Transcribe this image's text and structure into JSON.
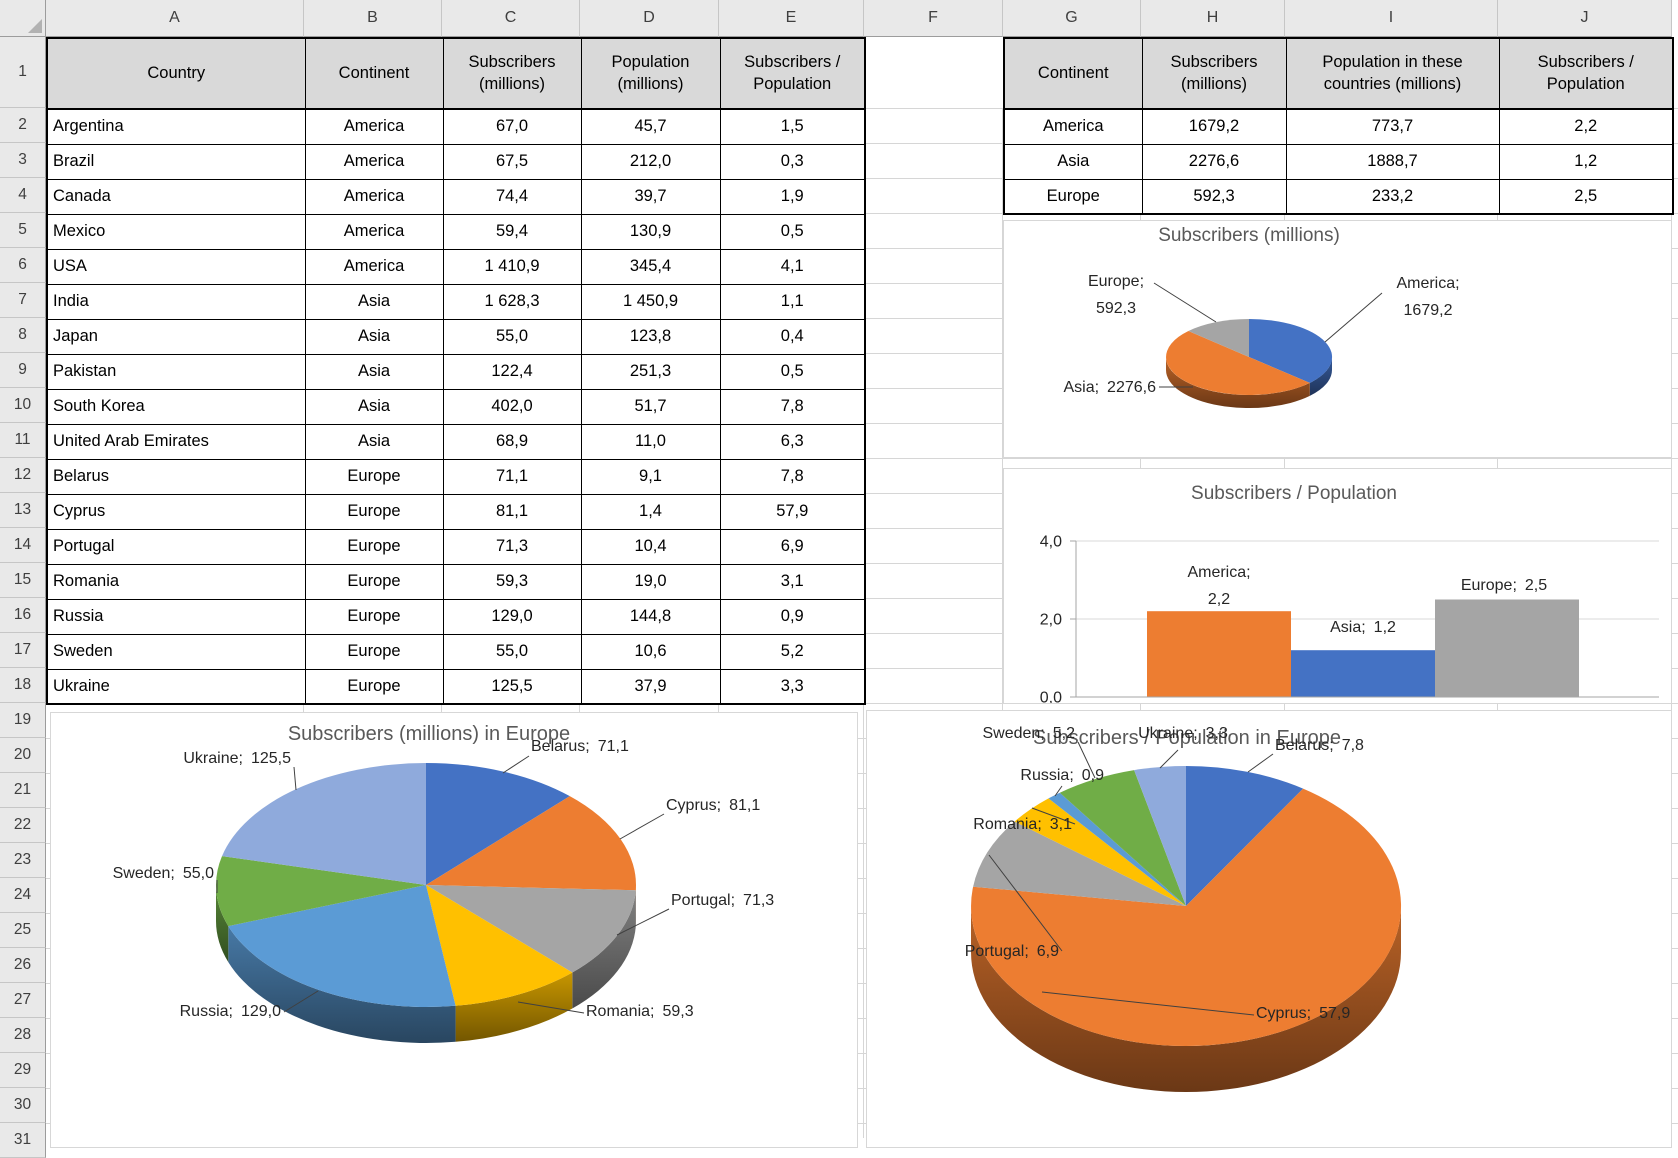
{
  "column_headers": [
    "A",
    "B",
    "C",
    "D",
    "E",
    "F",
    "G",
    "H",
    "I",
    "J"
  ],
  "row_headers": [
    "1",
    "2",
    "3",
    "4",
    "5",
    "6",
    "7",
    "8",
    "9",
    "10",
    "11",
    "12",
    "13",
    "14",
    "15",
    "16",
    "17",
    "18",
    "19",
    "20",
    "21",
    "22",
    "23",
    "24",
    "25",
    "26",
    "27",
    "28",
    "29",
    "30",
    "31"
  ],
  "country_table": {
    "headers": [
      "Country",
      "Continent",
      "Subscribers\n(millions)",
      "Population\n(millions)",
      "Subscribers /\nPopulation"
    ],
    "rows": [
      [
        "Argentina",
        "America",
        "67,0",
        "45,7",
        "1,5"
      ],
      [
        "Brazil",
        "America",
        "67,5",
        "212,0",
        "0,3"
      ],
      [
        "Canada",
        "America",
        "74,4",
        "39,7",
        "1,9"
      ],
      [
        "Mexico",
        "America",
        "59,4",
        "130,9",
        "0,5"
      ],
      [
        "USA",
        "America",
        "1 410,9",
        "345,4",
        "4,1"
      ],
      [
        "India",
        "Asia",
        "1 628,3",
        "1 450,9",
        "1,1"
      ],
      [
        "Japan",
        "Asia",
        "55,0",
        "123,8",
        "0,4"
      ],
      [
        "Pakistan",
        "Asia",
        "122,4",
        "251,3",
        "0,5"
      ],
      [
        "South Korea",
        "Asia",
        "402,0",
        "51,7",
        "7,8"
      ],
      [
        "United Arab Emirates",
        "Asia",
        "68,9",
        "11,0",
        "6,3"
      ],
      [
        "Belarus",
        "Europe",
        "71,1",
        "9,1",
        "7,8"
      ],
      [
        "Cyprus",
        "Europe",
        "81,1",
        "1,4",
        "57,9"
      ],
      [
        "Portugal",
        "Europe",
        "71,3",
        "10,4",
        "6,9"
      ],
      [
        "Romania",
        "Europe",
        "59,3",
        "19,0",
        "3,1"
      ],
      [
        "Russia",
        "Europe",
        "129,0",
        "144,8",
        "0,9"
      ],
      [
        "Sweden",
        "Europe",
        "55,0",
        "10,6",
        "5,2"
      ],
      [
        "Ukraine",
        "Europe",
        "125,5",
        "37,9",
        "3,3"
      ]
    ]
  },
  "continent_table": {
    "headers": [
      "Continent",
      "Subscribers\n(millions)",
      "Population in these\ncountries (millions)",
      "Subscribers /\nPopulation"
    ],
    "rows": [
      [
        "America",
        "1679,2",
        "773,7",
        "2,2"
      ],
      [
        "Asia",
        "2276,6",
        "1888,7",
        "1,2"
      ],
      [
        "Europe",
        "592,3",
        "233,2",
        "2,5"
      ]
    ]
  },
  "chart_data": [
    {
      "id": "pie-subscribers",
      "type": "pie",
      "three_d": true,
      "title": "Subscribers (millions)",
      "labels": [
        "America",
        "Asia",
        "Europe"
      ],
      "values": [
        1679.2,
        2276.6,
        592.3
      ],
      "value_labels": [
        "1679,2",
        "2276,6",
        "592,3"
      ],
      "colors": [
        "#4472C4",
        "#ED7D31",
        "#A5A5A5"
      ]
    },
    {
      "id": "bar-ratio",
      "type": "bar",
      "title": "Subscribers / Population",
      "categories": [
        "America",
        "Asia",
        "Europe"
      ],
      "values": [
        2.2,
        1.2,
        2.5
      ],
      "value_labels": [
        "2,2",
        "1,2",
        "2,5"
      ],
      "colors": [
        "#ED7D31",
        "#4472C4",
        "#A5A5A5"
      ],
      "ylim": [
        0,
        4
      ],
      "ytick_values": [
        0,
        2,
        4
      ],
      "ytick_labels": [
        "0,0",
        "2,0",
        "4,0"
      ],
      "grid": true,
      "legend": "none"
    },
    {
      "id": "pie-europe-subscribers",
      "type": "pie",
      "three_d": true,
      "title": "Subscribers (millions) in Europe",
      "labels": [
        "Belarus",
        "Cyprus",
        "Portugal",
        "Romania",
        "Russia",
        "Sweden",
        "Ukraine"
      ],
      "values": [
        71.1,
        81.1,
        71.3,
        59.3,
        129.0,
        55.0,
        125.5
      ],
      "value_labels": [
        "71,1",
        "81,1",
        "71,3",
        "59,3",
        "129,0",
        "55,0",
        "125,5"
      ],
      "colors": [
        "#4472C4",
        "#ED7D31",
        "#A5A5A5",
        "#FFC000",
        "#5B9BD5",
        "#70AD47",
        "#8FAADC"
      ]
    },
    {
      "id": "pie-europe-ratio",
      "type": "pie",
      "three_d": true,
      "title": "Subscribers / Population in Europe",
      "labels": [
        "Belarus",
        "Cyprus",
        "Portugal",
        "Romania",
        "Russia",
        "Sweden",
        "Ukraine"
      ],
      "values": [
        7.8,
        57.9,
        6.9,
        3.1,
        0.9,
        5.2,
        3.3
      ],
      "value_labels": [
        "7,8",
        "57,9",
        "6,9",
        "3,1",
        "0,9",
        "5,2",
        "3,3"
      ],
      "colors": [
        "#4472C4",
        "#ED7D31",
        "#A5A5A5",
        "#FFC000",
        "#5B9BD5",
        "#70AD47",
        "#8FAADC"
      ]
    }
  ]
}
